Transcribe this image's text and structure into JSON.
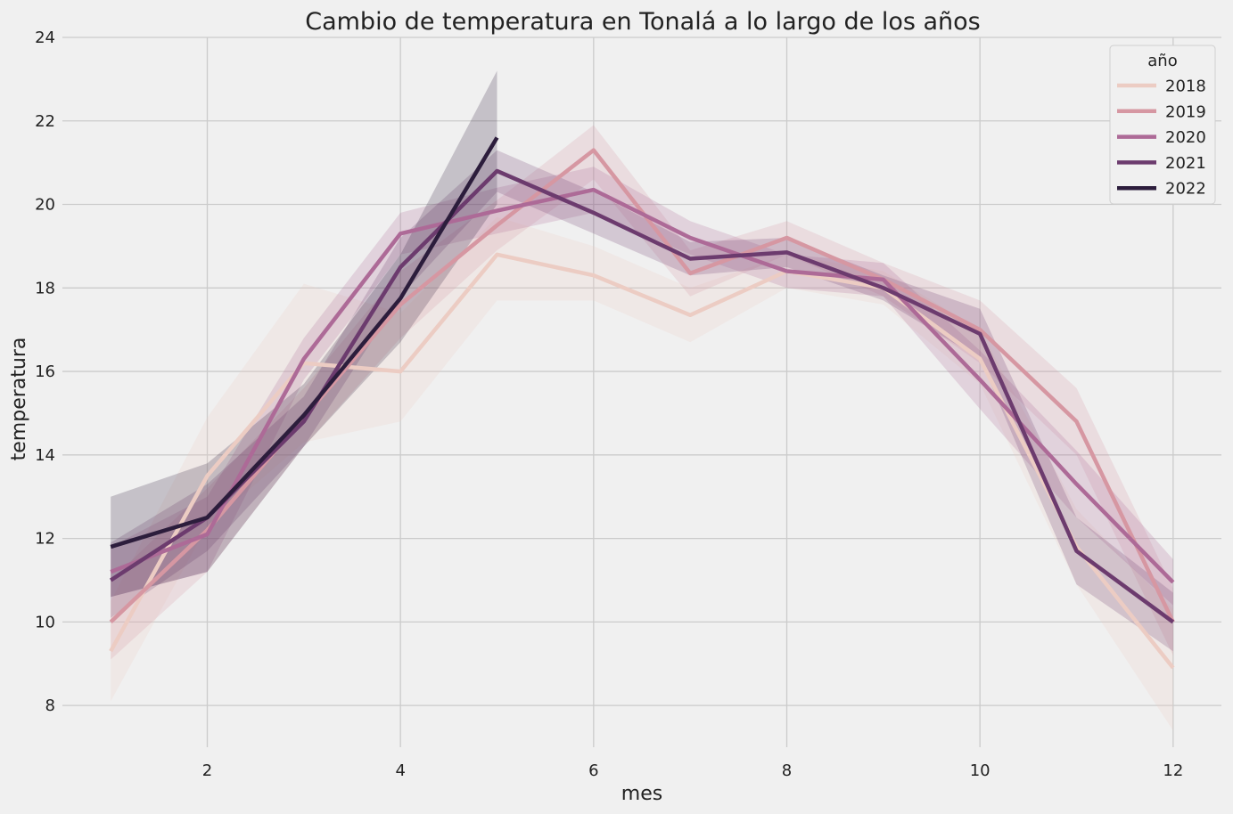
{
  "chart_data": {
    "type": "line",
    "title": "Cambio de temperatura en Tonalá a lo largo de los años",
    "xlabel": "mes",
    "ylabel": "temperatura",
    "xlim": [
      0.5,
      12.5
    ],
    "ylim": [
      7,
      24
    ],
    "xticks": [
      2,
      4,
      6,
      8,
      10,
      12
    ],
    "yticks": [
      8,
      10,
      12,
      14,
      16,
      18,
      20,
      22,
      24
    ],
    "grid": true,
    "legend": {
      "title": "año",
      "placement": "top-right"
    },
    "series": [
      {
        "name": "2018",
        "color": "#ecccc3",
        "x": [
          1,
          2,
          3,
          4,
          5,
          6,
          7,
          8,
          9,
          10,
          11,
          12
        ],
        "y": [
          9.3,
          13.5,
          16.2,
          16.0,
          18.8,
          18.3,
          17.35,
          18.4,
          18.0,
          16.3,
          11.8,
          8.9
        ],
        "lower": [
          8.1,
          12.3,
          14.3,
          14.8,
          17.7,
          17.7,
          16.7,
          18.0,
          17.6,
          15.7,
          10.9,
          7.4
        ],
        "upper": [
          10.5,
          14.9,
          18.1,
          17.4,
          19.7,
          19.0,
          18.0,
          18.8,
          18.4,
          17.0,
          12.7,
          10.3
        ]
      },
      {
        "name": "2019",
        "color": "#d697a2",
        "x": [
          1,
          2,
          3,
          4,
          5,
          6,
          7,
          8,
          9,
          10,
          11,
          12
        ],
        "y": [
          10.0,
          12.2,
          14.9,
          17.6,
          19.5,
          21.3,
          18.35,
          19.2,
          18.2,
          17.0,
          14.8,
          10.0
        ],
        "lower": [
          9.1,
          11.2,
          14.2,
          16.8,
          18.9,
          20.6,
          17.8,
          18.8,
          17.8,
          16.2,
          14.0,
          9.2
        ],
        "upper": [
          11.0,
          13.2,
          15.6,
          18.4,
          20.1,
          21.9,
          18.9,
          19.6,
          18.6,
          17.7,
          15.6,
          10.8
        ]
      },
      {
        "name": "2020",
        "color": "#ad6a97",
        "x": [
          1,
          2,
          3,
          4,
          5,
          6,
          7,
          8,
          9,
          10,
          11,
          12
        ],
        "y": [
          11.2,
          12.1,
          16.3,
          19.3,
          19.85,
          20.35,
          19.2,
          18.4,
          18.2,
          15.8,
          13.3,
          10.95
        ],
        "lower": [
          10.6,
          11.2,
          15.8,
          18.8,
          19.3,
          19.8,
          18.8,
          18.0,
          17.8,
          15.1,
          12.5,
          10.4
        ],
        "upper": [
          11.8,
          13.0,
          16.8,
          19.8,
          20.4,
          20.9,
          19.6,
          18.8,
          18.6,
          16.5,
          14.1,
          11.5
        ]
      },
      {
        "name": "2021",
        "color": "#6c3b6e",
        "x": [
          1,
          2,
          3,
          4,
          5,
          6,
          7,
          8,
          9,
          10,
          11,
          12
        ],
        "y": [
          11.0,
          12.5,
          14.8,
          18.5,
          20.8,
          19.8,
          18.7,
          18.85,
          18.0,
          16.9,
          11.7,
          10.0
        ],
        "lower": [
          10.1,
          11.7,
          14.2,
          17.8,
          20.3,
          19.3,
          18.3,
          18.5,
          17.7,
          16.3,
          10.9,
          9.3
        ],
        "upper": [
          11.9,
          13.3,
          15.4,
          19.2,
          21.3,
          20.3,
          19.1,
          19.2,
          18.3,
          17.5,
          12.5,
          10.7
        ]
      },
      {
        "name": "2022",
        "color": "#2c1d3c",
        "x": [
          1,
          2,
          3,
          4,
          5
        ],
        "y": [
          11.8,
          12.5,
          14.95,
          17.75,
          21.6
        ],
        "lower": [
          10.6,
          11.2,
          14.2,
          16.7,
          20.0
        ],
        "upper": [
          13.0,
          13.8,
          15.7,
          18.8,
          23.2
        ]
      }
    ]
  }
}
